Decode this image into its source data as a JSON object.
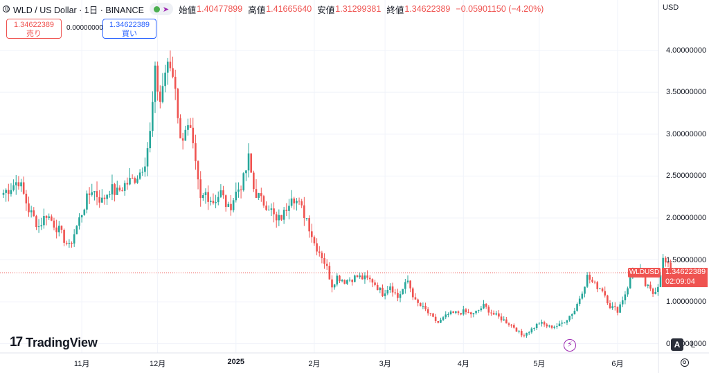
{
  "header": {
    "symbol": "WLD / US Dollar · 1日 · BINANCE",
    "open_label": "始値",
    "open": "1.40477899",
    "high_label": "高値",
    "high": "1.41665640",
    "low_label": "安値",
    "low": "1.31299381",
    "close_label": "終値",
    "close": "1.34622389",
    "change": "−0.05901150 (−4.20%)"
  },
  "trade": {
    "sell_price": "1.34622389",
    "sell_label": "売り",
    "spread": "0.00000000",
    "buy_price": "1.34622389",
    "buy_label": "買い"
  },
  "axis": {
    "currency": "USD"
  },
  "price_tag": {
    "name": "WLDUSD",
    "price": "1.34622389",
    "countdown": "02:09:04"
  },
  "logo": {
    "mark": "17",
    "text": "TradingView"
  },
  "controls": {
    "auto": "A",
    "log": "L"
  },
  "colors": {
    "up": "#26a69a",
    "down": "#ef5350",
    "grid": "#f0f3fa",
    "buy": "#2962ff",
    "accent": "#9c27b0"
  },
  "icons": [
    "globe-icon",
    "eye-icon",
    "share-icon",
    "bolt-icon",
    "settings-icon"
  ],
  "chart_data": {
    "type": "candlestick",
    "timeframe": "1D",
    "start_date": "2024-10-01",
    "y_ticks": [
      {
        "value": 4.0,
        "label": "4.00000000"
      },
      {
        "value": 3.5,
        "label": "3.50000000"
      },
      {
        "value": 3.0,
        "label": "3.00000000"
      },
      {
        "value": 2.5,
        "label": "2.50000000"
      },
      {
        "value": 2.0,
        "label": "2.00000000"
      },
      {
        "value": 1.5,
        "label": "1.50000000"
      },
      {
        "value": 1.0,
        "label": "1.00000000"
      },
      {
        "value": 0.5,
        "label": "0.50000000"
      }
    ],
    "x_ticks": [
      {
        "date": "2024-11-01",
        "label": "11月",
        "bold": false
      },
      {
        "date": "2024-12-01",
        "label": "12月",
        "bold": false
      },
      {
        "date": "2025-01-01",
        "label": "2025",
        "bold": true
      },
      {
        "date": "2025-02-01",
        "label": "2月",
        "bold": false
      },
      {
        "date": "2025-03-01",
        "label": "3月",
        "bold": false
      },
      {
        "date": "2025-04-01",
        "label": "4月",
        "bold": false
      },
      {
        "date": "2025-05-01",
        "label": "5月",
        "bold": false
      },
      {
        "date": "2025-06-01",
        "label": "6月",
        "bold": false
      }
    ],
    "y_range": [
      0.39,
      4.6
    ],
    "last_price": 1.34622389,
    "close_path": [
      [
        0,
        2.3
      ],
      [
        6,
        2.45
      ],
      [
        10,
        2.1
      ],
      [
        14,
        1.9
      ],
      [
        17,
        2.05
      ],
      [
        22,
        1.85
      ],
      [
        26,
        1.65
      ],
      [
        29,
        1.9
      ],
      [
        32,
        2.15
      ],
      [
        35,
        2.35
      ],
      [
        39,
        2.2
      ],
      [
        42,
        2.35
      ],
      [
        45,
        2.3
      ],
      [
        48,
        2.4
      ],
      [
        51,
        2.45
      ],
      [
        54,
        2.55
      ],
      [
        56,
        2.7
      ],
      [
        58,
        3.0
      ],
      [
        60,
        3.7
      ],
      [
        62,
        3.4
      ],
      [
        64,
        3.75
      ],
      [
        66,
        3.8
      ],
      [
        68,
        3.6
      ],
      [
        70,
        2.9
      ],
      [
        72,
        3.1
      ],
      [
        74,
        3.0
      ],
      [
        76,
        2.6
      ],
      [
        78,
        2.2
      ],
      [
        80,
        2.3
      ],
      [
        83,
        2.2
      ],
      [
        86,
        2.3
      ],
      [
        89,
        2.1
      ],
      [
        92,
        2.3
      ],
      [
        95,
        2.45
      ],
      [
        97,
        2.7
      ],
      [
        99,
        2.35
      ],
      [
        102,
        2.2
      ],
      [
        105,
        2.15
      ],
      [
        108,
        1.95
      ],
      [
        111,
        2.05
      ],
      [
        114,
        2.3
      ],
      [
        117,
        2.15
      ],
      [
        120,
        2.0
      ],
      [
        123,
        1.7
      ],
      [
        126,
        1.55
      ],
      [
        128,
        1.4
      ],
      [
        130,
        1.2
      ],
      [
        132,
        1.3
      ],
      [
        135,
        1.25
      ],
      [
        140,
        1.3
      ],
      [
        146,
        1.25
      ],
      [
        150,
        1.1
      ],
      [
        153,
        1.2
      ],
      [
        156,
        1.05
      ],
      [
        160,
        1.25
      ],
      [
        163,
        1.0
      ],
      [
        167,
        0.9
      ],
      [
        170,
        0.8
      ],
      [
        172,
        0.75
      ],
      [
        176,
        0.85
      ],
      [
        182,
        0.88
      ],
      [
        186,
        0.85
      ],
      [
        190,
        0.95
      ],
      [
        194,
        0.85
      ],
      [
        198,
        0.78
      ],
      [
        202,
        0.7
      ],
      [
        205,
        0.6
      ],
      [
        208,
        0.65
      ],
      [
        212,
        0.75
      ],
      [
        216,
        0.7
      ],
      [
        220,
        0.72
      ],
      [
        223,
        0.8
      ],
      [
        226,
        0.9
      ],
      [
        228,
        1.05
      ],
      [
        231,
        1.3
      ],
      [
        234,
        1.2
      ],
      [
        237,
        1.15
      ],
      [
        240,
        0.95
      ],
      [
        243,
        0.9
      ],
      [
        246,
        1.1
      ],
      [
        249,
        1.35
      ],
      [
        252,
        1.35
      ],
      [
        254,
        1.2
      ],
      [
        257,
        1.1
      ],
      [
        259,
        1.2
      ],
      [
        261,
        1.5
      ],
      [
        263,
        1.42
      ],
      [
        264,
        1.35
      ]
    ]
  }
}
